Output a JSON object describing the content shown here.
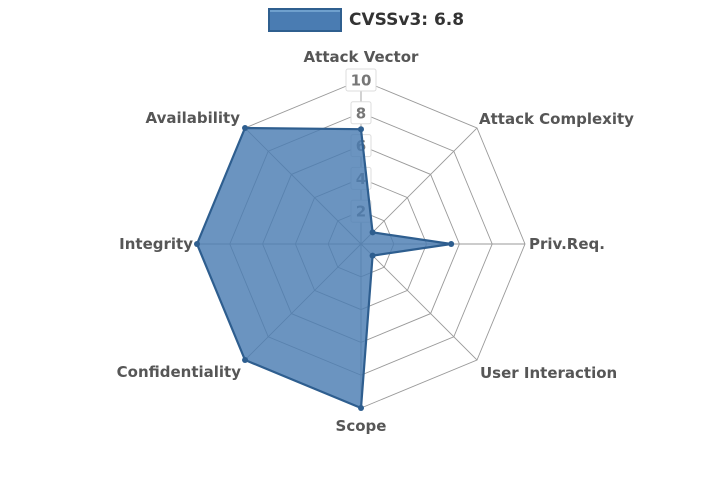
{
  "legend": {
    "series_label": "CVSSv3: 6.8"
  },
  "chart_data": {
    "type": "radar",
    "title": "CVSSv3: 6.8",
    "categories": [
      "Attack Vector",
      "Attack Complexity",
      "Priv.Req.",
      "User Interaction",
      "Scope",
      "Confidentiality",
      "Integrity",
      "Availability"
    ],
    "series": [
      {
        "name": "CVSSv3: 6.8",
        "values": [
          7,
          1,
          5.5,
          1,
          10,
          10,
          10,
          10
        ]
      }
    ],
    "ticks": [
      2,
      4,
      6,
      8,
      10
    ],
    "rlim": [
      0,
      10
    ],
    "grid": true,
    "legend_position": "top",
    "colors": {
      "fill": "#4a7cb2",
      "stroke": "#2e5e8f",
      "web": "#9a9a9a",
      "tick_box": "#ffffff",
      "tick_box_border": "#dddddd",
      "tick_text": "#777777",
      "axis_label": "#565656",
      "legend_text": "#333333",
      "background": "#ffffff"
    }
  }
}
